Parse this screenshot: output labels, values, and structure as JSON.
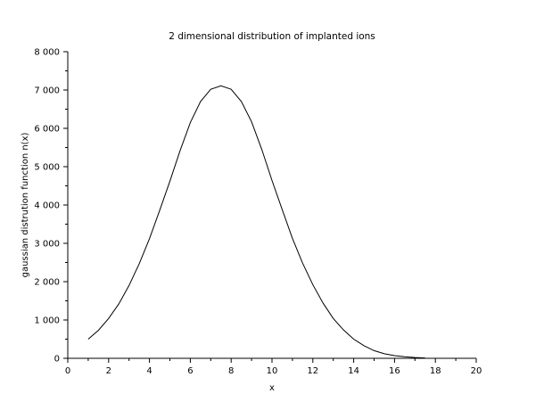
{
  "chart_data": {
    "type": "line",
    "title": "2 dimensional distribution of implanted ions",
    "xlabel": "x",
    "ylabel": "gaussian distrution function n(x)",
    "xlim": [
      0,
      20
    ],
    "ylim": [
      0,
      8000
    ],
    "x_ticks": [
      0,
      2,
      4,
      6,
      8,
      10,
      12,
      14,
      16,
      18,
      20
    ],
    "x_tick_labels": [
      "0",
      "2",
      "4",
      "6",
      "8",
      "10",
      "12",
      "14",
      "16",
      "18",
      "20"
    ],
    "y_ticks": [
      0,
      1000,
      2000,
      3000,
      4000,
      5000,
      6000,
      7000,
      8000
    ],
    "y_tick_labels": [
      "0",
      "1 000",
      "2 000",
      "3 000",
      "4 000",
      "5 000",
      "6 000",
      "7 000",
      "8 000"
    ],
    "grid": false,
    "series": [
      {
        "name": "n(x)",
        "color": "#000000",
        "x": [
          1.0,
          1.5,
          2.0,
          2.5,
          3.0,
          3.5,
          4.0,
          4.5,
          5.0,
          5.5,
          6.0,
          6.5,
          7.0,
          7.5,
          8.0,
          8.5,
          9.0,
          9.5,
          10.0,
          10.5,
          11.0,
          11.5,
          12.0,
          12.5,
          13.0,
          13.5,
          14.0,
          14.5,
          15.0,
          15.5,
          16.0,
          16.5,
          17.0,
          17.5
        ],
        "values": [
          500,
          730,
          1040,
          1420,
          1900,
          2470,
          3120,
          3860,
          4620,
          5420,
          6150,
          6700,
          7020,
          7110,
          7020,
          6700,
          6170,
          5450,
          4640,
          3880,
          3130,
          2480,
          1920,
          1440,
          1040,
          740,
          500,
          330,
          200,
          120,
          70,
          40,
          20,
          10
        ]
      }
    ]
  }
}
